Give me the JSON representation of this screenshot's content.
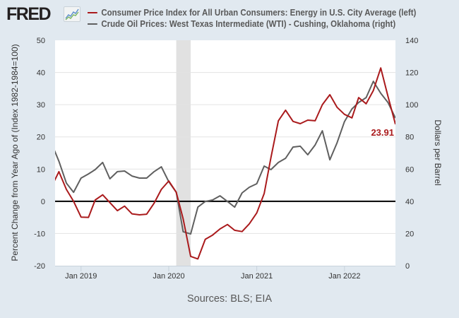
{
  "header": {
    "logo_text": "FRED",
    "logo_icon": "chart-line-icon"
  },
  "legend": [
    {
      "label": "Consumer Price Index for All Urban Consumers: Energy in U.S. City Average (left)",
      "color": "#aa1a1c"
    },
    {
      "label": "Crude Oil Prices: West Texas Intermediate (WTI) - Cushing, Oklahoma (right)",
      "color": "#5f5f5f"
    }
  ],
  "footer": {
    "source": "Sources: BLS; EIA"
  },
  "chart_data": {
    "type": "line",
    "title": "",
    "x": [
      "2018-09",
      "2018-10",
      "2018-11",
      "2018-12",
      "2019-01",
      "2019-02",
      "2019-03",
      "2019-04",
      "2019-05",
      "2019-06",
      "2019-07",
      "2019-08",
      "2019-09",
      "2019-10",
      "2019-11",
      "2019-12",
      "2020-01",
      "2020-02",
      "2020-03",
      "2020-04",
      "2020-05",
      "2020-06",
      "2020-07",
      "2020-08",
      "2020-09",
      "2020-10",
      "2020-11",
      "2020-12",
      "2021-01",
      "2021-02",
      "2021-03",
      "2021-04",
      "2021-05",
      "2021-06",
      "2021-07",
      "2021-08",
      "2021-09",
      "2021-10",
      "2021-11",
      "2021-12",
      "2022-01",
      "2022-02",
      "2022-03",
      "2022-04",
      "2022-05",
      "2022-06",
      "2022-07",
      "2022-08"
    ],
    "x_ticks": [
      {
        "date": "2019-01",
        "label": "Jan 2019"
      },
      {
        "date": "2020-01",
        "label": "Jan 2020"
      },
      {
        "date": "2021-01",
        "label": "Jan 2021"
      },
      {
        "date": "2022-01",
        "label": "Jan 2022"
      }
    ],
    "xlim": [
      "2018-09-15",
      "2022-08-01"
    ],
    "series": [
      {
        "name": "Consumer Price Index for All Urban Consumers: Energy in U.S. City Average",
        "axis": "left",
        "color": "#aa1a1c",
        "values": [
          4.6,
          9.2,
          3.7,
          0.0,
          -4.9,
          -5.0,
          0.4,
          2.0,
          -0.4,
          -2.9,
          -1.5,
          -3.9,
          -4.2,
          -4.0,
          -0.6,
          3.7,
          6.3,
          2.8,
          -5.5,
          -17.1,
          -17.9,
          -11.8,
          -10.5,
          -8.6,
          -7.2,
          -9.0,
          -9.4,
          -7.0,
          -3.6,
          2.4,
          13.6,
          25.0,
          28.3,
          24.8,
          24.1,
          25.2,
          25.0,
          30.0,
          33.1,
          29.2,
          27.0,
          25.9,
          32.2,
          30.3,
          34.4,
          41.4,
          32.6,
          23.91
        ]
      },
      {
        "name": "Crude Oil Prices: West Texas Intermediate (WTI) - Cushing, Oklahoma",
        "axis": "right",
        "color": "#5f5f5f",
        "values": [
          75.8,
          64.9,
          51.3,
          45.6,
          54.4,
          57.0,
          59.7,
          64.1,
          54.0,
          58.4,
          58.8,
          55.7,
          54.4,
          54.4,
          58.4,
          61.4,
          52.2,
          45.6,
          21.1,
          19.7,
          36.4,
          39.9,
          40.8,
          43.4,
          39.9,
          36.4,
          45.2,
          48.7,
          50.9,
          61.9,
          59.7,
          64.1,
          66.7,
          73.7,
          74.2,
          68.9,
          75.0,
          83.8,
          65.8,
          76.3,
          89.5,
          97.4,
          101.4,
          104.4,
          114.5,
          107.1,
          101.4,
          91.7
        ]
      }
    ],
    "y_left": {
      "label": "Percent Change from Year Ago of (Index 1982-1984=100)",
      "lim": [
        -20,
        50
      ],
      "ticks": [
        -20,
        -10,
        0,
        10,
        20,
        30,
        40,
        50
      ]
    },
    "y_right": {
      "label": "Dollars per Barrel",
      "lim": [
        0,
        140
      ],
      "ticks": [
        0,
        20,
        40,
        60,
        80,
        100,
        120,
        140
      ]
    },
    "zero_line": 0,
    "recession": {
      "start": "2020-02-01",
      "end": "2020-04-01"
    },
    "annotation": {
      "text": "23.91",
      "series": 0,
      "date": "2022-08"
    },
    "grid": true,
    "legend_position": "top"
  }
}
